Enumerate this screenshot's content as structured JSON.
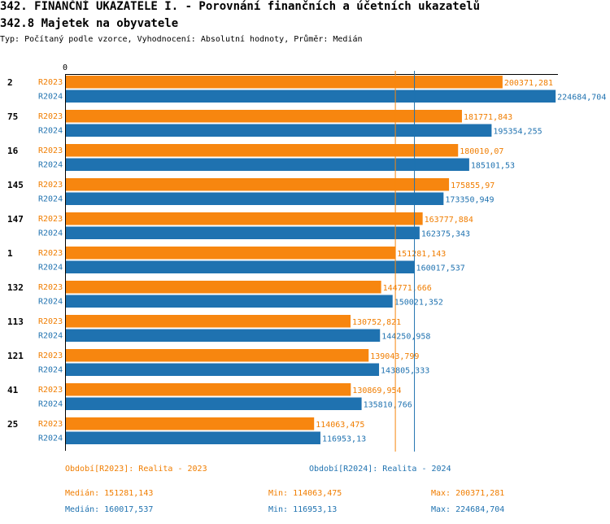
{
  "header": {
    "title": "342. FINANČNÍ UKAZATELE I. - Porovnání finančních a účetních ukazatelů",
    "subtitle": "342.8 Majetek na obyvatele",
    "meta": "Typ: Počítaný podle vzorce, Vyhodnocení: Absolutní hodnoty, Průměr: Medián"
  },
  "colors": {
    "r2023": "#f7860f",
    "r2024": "#1f72b0",
    "label2023": "#f07d00",
    "label2024": "#1f72b0"
  },
  "chart_data": {
    "type": "bar",
    "orientation": "horizontal",
    "axis_zero_label": "0",
    "xlim": [
      0,
      225000
    ],
    "categories": [
      "2",
      "75",
      "16",
      "145",
      "147",
      "1",
      "132",
      "113",
      "121",
      "41",
      "25"
    ],
    "series": [
      {
        "name": "R2023",
        "values": [
          200371.281,
          181771.843,
          180010.07,
          175855.97,
          163777.884,
          151281.143,
          144771.666,
          130752.821,
          139043.799,
          130869.954,
          114063.475
        ],
        "labels": [
          "200371,281",
          "181771,843",
          "180010,07",
          "175855,97",
          "163777,884",
          "151281,143",
          "144771,666",
          "130752,821",
          "139043,799",
          "130869,954",
          "114063,475"
        ]
      },
      {
        "name": "R2024",
        "values": [
          224684.704,
          195354.255,
          185101.53,
          173350.949,
          162375.343,
          160017.537,
          150021.352,
          144250.958,
          143805.333,
          135810.766,
          116953.13
        ],
        "labels": [
          "224684,704",
          "195354,255",
          "185101,53",
          "173350,949",
          "162375,343",
          "160017,537",
          "150021,352",
          "144250,958",
          "143805,333",
          "135810,766",
          "116953,13"
        ]
      }
    ],
    "median_lines": [
      151281.143,
      160017.537
    ]
  },
  "footer": {
    "legend2023": "Období[R2023]: Realita - 2023",
    "legend2024": "Období[R2024]: Realita - 2024",
    "median2023": "Medián: 151281,143",
    "min2023": "Min: 114063,475",
    "max2023": "Max: 200371,281",
    "median2024": "Medián: 160017,537",
    "min2024": "Min: 116953,13",
    "max2024": "Max: 224684,704"
  }
}
